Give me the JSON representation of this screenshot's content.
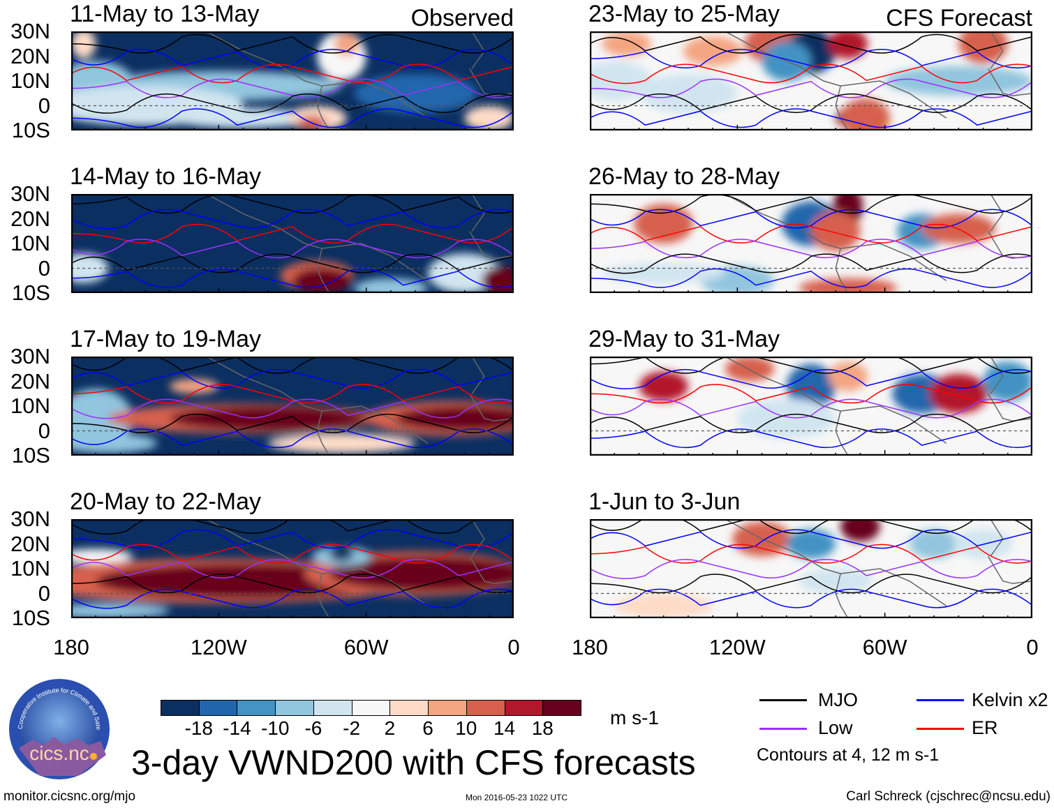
{
  "figure_title": "3-day VWND200 with CFS forecasts",
  "chart_data": {
    "type": "heatmap",
    "title": "3-day VWND200 with CFS forecasts",
    "units": "m s-1",
    "columns": [
      {
        "label": "Observed",
        "panels": [
          "11-May to 13-May",
          "14-May to 16-May",
          "17-May to 19-May",
          "20-May to 22-May"
        ]
      },
      {
        "label": "CFS Forecast",
        "panels": [
          "23-May to 25-May",
          "26-May to 28-May",
          "29-May to 31-May",
          "1-Jun to 3-Jun"
        ]
      }
    ],
    "lat_ticks": [
      "30N",
      "20N",
      "10N",
      "0",
      "10S"
    ],
    "lat_range": [
      -10,
      30
    ],
    "lon_ticks": [
      "180",
      "120W",
      "60W",
      "0"
    ],
    "lon_range": [
      -180,
      0
    ],
    "colorbar": {
      "levels": [
        "-18",
        "-14",
        "-10",
        "-6",
        "-2",
        "2",
        "6",
        "10",
        "14",
        "18"
      ],
      "colors": [
        "#0b2f61",
        "#2166ac",
        "#4393c3",
        "#92c5de",
        "#d1e5f0",
        "#f7f7f7",
        "#fddbc7",
        "#f4a582",
        "#d6604d",
        "#b2182b",
        "#67001f"
      ],
      "units_label": "m s-1"
    },
    "legend": [
      {
        "label": "MJO",
        "color": "#000000"
      },
      {
        "label": "Kelvin x2",
        "color": "#0000ff"
      },
      {
        "label": "Low",
        "color": "#9b30ff"
      },
      {
        "label": "ER",
        "color": "#ff0000"
      }
    ],
    "contour_note": "Contours at 4, 12 m s-1"
  },
  "logo_text": "cics.nc",
  "logo_ring_text": "Cooperative Institute for Climate and Satellites",
  "footer": {
    "url": "monitor.cicsnc.org/mjo",
    "timestamp": "Mon 2016-05-23 1022 UTC",
    "author": "Carl Schreck (cjschrec@ncsu.edu)"
  }
}
